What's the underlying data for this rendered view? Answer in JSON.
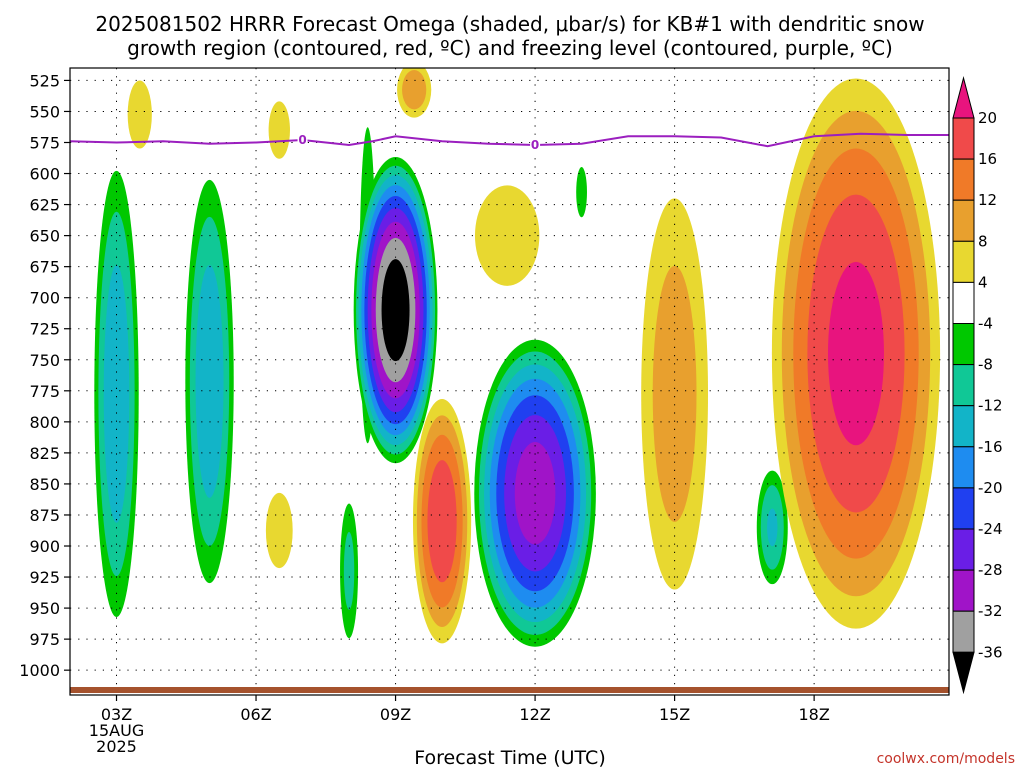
{
  "title_line1": "2025081502 HRRR Forecast Omega (shaded, μbar/s) for KB#1 with dendritic snow",
  "title_line2": "growth region (contoured, red, ºC) and freezing level (contoured, purple, ºC)",
  "credit": "coolwx.com/models",
  "chart_data": {
    "type": "heatmap",
    "title": "2025081502 HRRR Forecast Omega (shaded, μbar/s) for KB#1 with dendritic snow growth region (contoured, red, ºC) and freezing level (contoured, purple, ºC)",
    "xlabel": "Forecast Time (UTC)",
    "ylabel": "",
    "x_ticks": [
      "03Z",
      "06Z",
      "09Z",
      "12Z",
      "15Z",
      "18Z"
    ],
    "x_ticks_hours": [
      3,
      6,
      9,
      12,
      15,
      18
    ],
    "x_first_tick_date": [
      "15AUG",
      "2025"
    ],
    "xlim_hours": [
      2.0,
      20.9
    ],
    "y_ticks": [
      525,
      550,
      575,
      600,
      625,
      650,
      675,
      700,
      725,
      750,
      775,
      800,
      825,
      850,
      875,
      900,
      925,
      950,
      975,
      1000
    ],
    "ylim_hPa": [
      1020,
      515
    ],
    "grid": true,
    "colorbar_ticks": [
      20,
      16,
      12,
      8,
      4,
      -4,
      -8,
      -12,
      -16,
      -20,
      -24,
      -28,
      -32,
      -36
    ],
    "colors": {
      "gt20": "#e8147e",
      "16_20": "#f04a4a",
      "12_16": "#f07a28",
      "8_12": "#e8a02e",
      "4_8": "#e8d830",
      "m4_4": "#ffffff",
      "m8_m4": "#00c800",
      "m12_m8": "#10c896",
      "m16_m12": "#12b4c8",
      "m20_m16": "#1e8cf0",
      "m24_m20": "#2040f0",
      "m28_m24": "#6a1ee6",
      "m32_m28": "#a014c8",
      "m36_m32": "#a0a0a0",
      "lt_m36": "#000000",
      "freezing_level": "#9b1fbf",
      "ground": "#a5522d"
    },
    "freezing_level_label": "0",
    "freezing_level": {
      "x_hours": [
        2.0,
        3.0,
        4.0,
        5.0,
        6.0,
        7.0,
        8.0,
        8.5,
        9.0,
        10.0,
        11.0,
        12.0,
        13.0,
        14.0,
        15.0,
        16.0,
        17.0,
        18.0,
        19.0,
        20.0,
        20.9
      ],
      "p_hPa": [
        574,
        575,
        574,
        576,
        575,
        573,
        577,
        574,
        570,
        574,
        576,
        577,
        576,
        570,
        570,
        571,
        578,
        570,
        568,
        569,
        569
      ]
    },
    "omega_features": [
      {
        "type": "low",
        "hour": 3.0,
        "p_top": 570,
        "p_bottom": 985,
        "halfwidth_h": 0.55,
        "peak": -16
      },
      {
        "type": "low",
        "hour": 5.0,
        "p_top": 580,
        "p_bottom": 955,
        "halfwidth_h": 0.6,
        "peak": -16
      },
      {
        "type": "low",
        "hour": 8.4,
        "p_top": 510,
        "p_bottom": 870,
        "halfwidth_h": 0.25,
        "peak": -8
      },
      {
        "type": "low",
        "hour": 9.0,
        "p_top": 580,
        "p_bottom": 840,
        "halfwidth_h": 0.95,
        "peak": -40
      },
      {
        "type": "low",
        "hour": 8.0,
        "p_top": 850,
        "p_bottom": 990,
        "halfwidth_h": 0.25,
        "peak": -10
      },
      {
        "type": "low",
        "hour": 12.0,
        "p_top": 725,
        "p_bottom": 990,
        "halfwidth_h": 1.4,
        "peak": -31
      },
      {
        "type": "low",
        "hour": 13.0,
        "p_top": 580,
        "p_bottom": 650,
        "halfwidth_h": 0.2,
        "peak": -6
      },
      {
        "type": "low",
        "hour": 17.1,
        "p_top": 830,
        "p_bottom": 940,
        "halfwidth_h": 0.4,
        "peak": -13
      },
      {
        "type": "high",
        "hour": 3.5,
        "p_top": 505,
        "p_bottom": 600,
        "halfwidth_h": 0.45,
        "peak": 6
      },
      {
        "type": "high",
        "hour": 6.5,
        "p_top": 525,
        "p_bottom": 605,
        "halfwidth_h": 0.4,
        "peak": 6
      },
      {
        "type": "high",
        "hour": 9.4,
        "p_top": 505,
        "p_bottom": 560,
        "halfwidth_h": 0.45,
        "peak": 12
      },
      {
        "type": "high",
        "hour": 11.4,
        "p_top": 580,
        "p_bottom": 720,
        "halfwidth_h": 1.2,
        "peak": 6
      },
      {
        "type": "high",
        "hour": 6.5,
        "p_top": 835,
        "p_bottom": 940,
        "halfwidth_h": 0.5,
        "peak": 6
      },
      {
        "type": "high",
        "hour": 10.0,
        "p_top": 770,
        "p_bottom": 990,
        "halfwidth_h": 0.7,
        "peak": 20
      },
      {
        "type": "high",
        "hour": 15.0,
        "p_top": 580,
        "p_bottom": 975,
        "halfwidth_h": 0.9,
        "peak": 11
      },
      {
        "type": "high",
        "hour": 18.9,
        "p_top": 500,
        "p_bottom": 990,
        "halfwidth_h": 2.0,
        "peak": 22
      }
    ]
  }
}
